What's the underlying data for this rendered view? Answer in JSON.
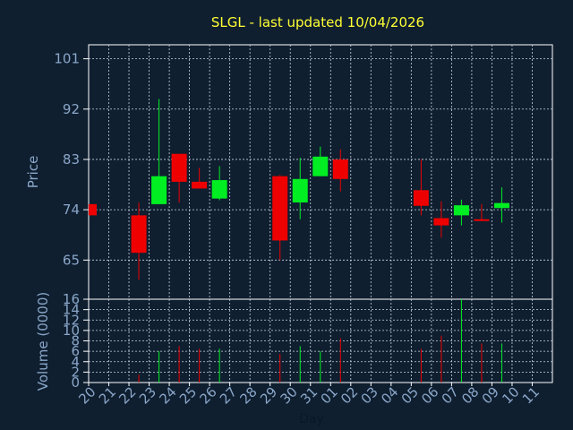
{
  "title": "SLGL - last updated 10/04/2026",
  "chart_data": [
    {
      "type": "candlestick",
      "ylabel": "Price",
      "ylim": [
        58,
        103.5
      ],
      "yticks": [
        65,
        74,
        83,
        92,
        101
      ],
      "grid": true,
      "candles": [
        {
          "x": "20",
          "open": 75.0,
          "close": 73.0,
          "high": 75.0,
          "low": 73.0
        },
        {
          "x": "23",
          "open": 73.0,
          "close": 66.3,
          "high": 75.3,
          "low": 61.5
        },
        {
          "x": "24",
          "open": 75.0,
          "close": 80.0,
          "high": 93.8,
          "low": 75.0
        },
        {
          "x": "25",
          "open": 84.0,
          "close": 79.0,
          "high": 84.0,
          "low": 75.3
        },
        {
          "x": "26",
          "open": 79.0,
          "close": 77.8,
          "high": 81.5,
          "low": 77.8
        },
        {
          "x": "27",
          "open": 76.0,
          "close": 79.3,
          "high": 81.8,
          "low": 75.7
        },
        {
          "x": "30",
          "open": 80.0,
          "close": 68.5,
          "high": 80.2,
          "low": 65.0
        },
        {
          "x": "31",
          "open": 75.3,
          "close": 79.5,
          "high": 83.3,
          "low": 72.3
        },
        {
          "x": "01",
          "open": 80.0,
          "close": 83.5,
          "high": 85.3,
          "low": 80.0
        },
        {
          "x": "02",
          "open": 83.0,
          "close": 79.5,
          "high": 84.8,
          "low": 77.3
        },
        {
          "x": "06",
          "open": 77.5,
          "close": 74.7,
          "high": 83.0,
          "low": 73.0
        },
        {
          "x": "07",
          "open": 72.5,
          "close": 71.2,
          "high": 75.5,
          "low": 69.0
        },
        {
          "x": "08",
          "open": 73.0,
          "close": 74.8,
          "high": 75.8,
          "low": 71.2
        },
        {
          "x": "09",
          "open": 72.3,
          "close": 72.0,
          "high": 75.0,
          "low": 72.0
        },
        {
          "x": "10",
          "open": 74.3,
          "close": 75.2,
          "high": 78.0,
          "low": 71.7
        }
      ],
      "up_color": "#00ee22",
      "down_color": "#ee0000"
    },
    {
      "type": "bar",
      "ylabel": "Volume (0000)",
      "xlabel": "Day",
      "ylim": [
        0,
        16
      ],
      "yticks": [
        0,
        2,
        4,
        6,
        8,
        10,
        12,
        14,
        16
      ],
      "categories": [
        "20",
        "21",
        "22",
        "23",
        "24",
        "25",
        "26",
        "27",
        "28",
        "29",
        "30",
        "31",
        "01",
        "02",
        "03",
        "04",
        "05",
        "06",
        "07",
        "08",
        "09",
        "10",
        "11"
      ],
      "values": [
        0,
        0,
        0,
        1.5,
        6,
        7,
        6.5,
        6.5,
        0,
        0,
        5.5,
        7,
        6,
        8.5,
        0,
        0,
        0,
        6.5,
        9,
        16,
        7.5,
        7.5,
        0
      ],
      "colors": [
        "#ee0000",
        "#ee0000",
        "#ee0000",
        "#ee0000",
        "#00ee22",
        "#ee0000",
        "#ee0000",
        "#00ee22",
        "#ee0000",
        "#ee0000",
        "#ee0000",
        "#00ee22",
        "#00ee22",
        "#ee0000",
        "#ee0000",
        "#ee0000",
        "#ee0000",
        "#ee0000",
        "#ee0000",
        "#00ee22",
        "#ee0000",
        "#00ee22",
        "#ee0000"
      ]
    }
  ]
}
